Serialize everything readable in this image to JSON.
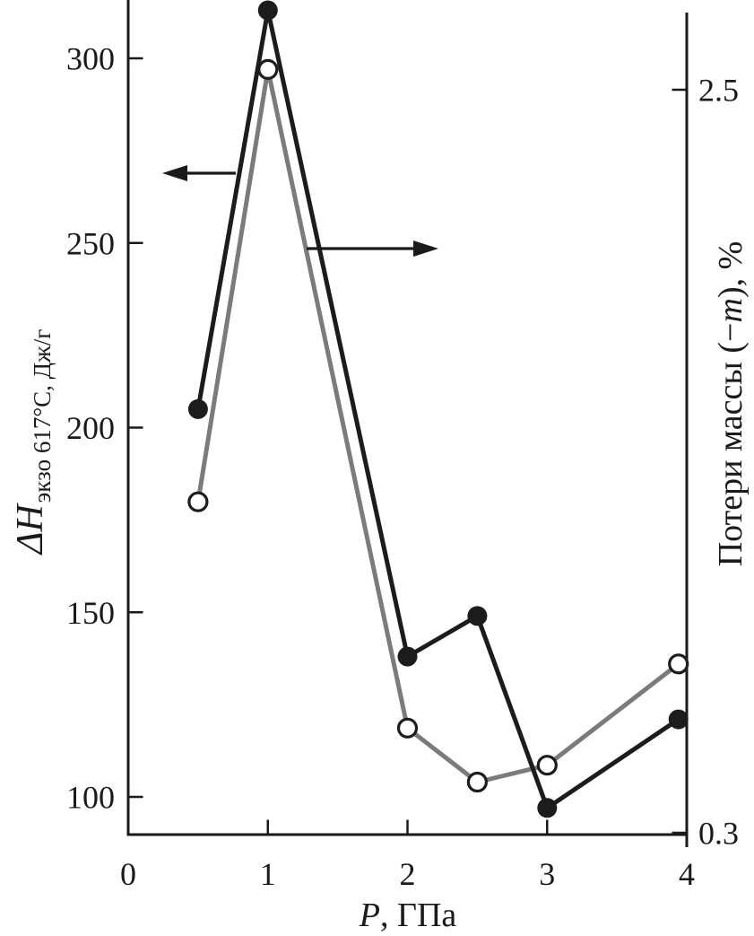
{
  "figure": {
    "background": "#ffffff",
    "ink_color": "#1a1a1a",
    "gray_color": "#7b7b7b"
  },
  "chart_data": {
    "type": "line",
    "title": "",
    "x": [
      0.5,
      1.0,
      2.0,
      2.5,
      3.0,
      3.94
    ],
    "x_axis": {
      "label_italic": "P",
      "label_rest": ", ГПа",
      "ticks": [
        "0",
        "1",
        "2",
        "3",
        "4"
      ],
      "tick_values": [
        0,
        1,
        2,
        3,
        4
      ],
      "range": [
        0,
        4
      ]
    },
    "y_axis_left": {
      "label_main": "ΔH",
      "label_subscript": "экзо 617°C, Дж/г",
      "ticks": [
        "100",
        "150",
        "200",
        "250",
        "300"
      ],
      "tick_values": [
        100,
        150,
        200,
        250,
        300
      ],
      "range": [
        90,
        316
      ]
    },
    "y_axis_right": {
      "label_pre": "Потери массы (−",
      "label_italic": "m",
      "label_post": "), %",
      "ticks": [
        "2.5",
        "0.3"
      ],
      "tick_values": [
        2.5,
        0.3
      ],
      "range": [
        0.3,
        2.73
      ]
    },
    "series": [
      {
        "name": "delta-H-exo",
        "axis": "left",
        "marker": "filled-circle",
        "color": "#1c1c1c",
        "values": [
          205,
          313,
          138,
          149,
          97,
          121
        ]
      },
      {
        "name": "mass-loss",
        "axis": "right",
        "marker": "open-circle",
        "color": "#7b7b7b",
        "values": [
          1.28,
          2.56,
          0.61,
          0.45,
          0.5,
          0.8
        ]
      }
    ],
    "annotations": {
      "left_arrow": {
        "direction": "left",
        "meaning": "filled series reads on left axis"
      },
      "right_arrow": {
        "direction": "right",
        "meaning": "open series reads on right axis"
      }
    },
    "grid": false,
    "legend": "none"
  }
}
